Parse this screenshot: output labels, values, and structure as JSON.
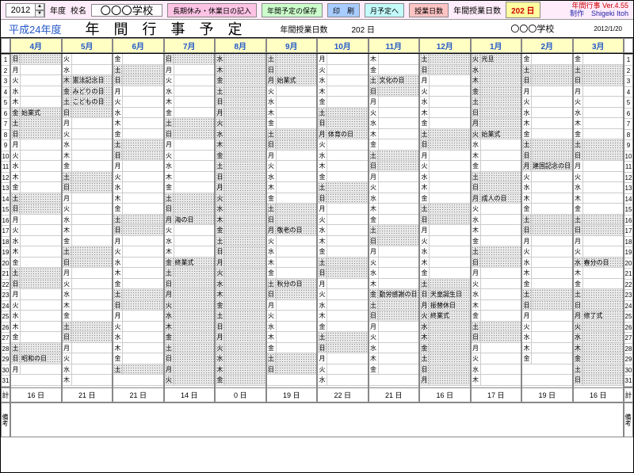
{
  "toolbar": {
    "year": "2012",
    "year_label": "年度",
    "school_label": "校名",
    "school_value": "〇〇〇学校",
    "btn_holiday": "長期休み・休業日の記入",
    "btn_save": "年間予定の保存",
    "btn_print": "印　刷",
    "btn_month": "月予定へ",
    "btn_days": "授業日数",
    "count_label": "年間授業日数",
    "count_value": "202 日",
    "version": "年間行事 Ver.4.55",
    "credit": "制作　Shigeki Itoh"
  },
  "title": {
    "era": "平成24年度",
    "main": "年間行事予定",
    "sub_count_label": "年間授業日数",
    "sub_count_value": "202 日",
    "school": "〇〇〇学校",
    "print_date": "2012/1/20"
  },
  "months": [
    "4月",
    "5月",
    "6月",
    "7月",
    "8月",
    "9月",
    "10月",
    "11月",
    "12月",
    "1月",
    "2月",
    "3月"
  ],
  "start_dow": [
    0,
    2,
    5,
    0,
    3,
    6,
    1,
    4,
    6,
    2,
    5,
    5
  ],
  "month_len": [
    30,
    31,
    30,
    31,
    31,
    30,
    31,
    30,
    31,
    31,
    29,
    31
  ],
  "dow_chars": [
    "日",
    "月",
    "火",
    "水",
    "木",
    "金",
    "土"
  ],
  "events": {
    "0": {
      "6": "始業式",
      "29": "昭和の日"
    },
    "1": {
      "3": "憲法記念日",
      "4": "みどりの日",
      "5": "こどもの日"
    },
    "3": {
      "16": "海の日",
      "20": "終業式"
    },
    "5": {
      "3": "始業式",
      "17": "敬老の日",
      "22": "秋分の日"
    },
    "6": {
      "8": "体育の日"
    },
    "7": {
      "3": "文化の日",
      "23": "勤労感謝の日"
    },
    "8": {
      "23": "天皇誕生日",
      "24": "振替休日",
      "25": "終業式"
    },
    "9": {
      "1": "元旦",
      "8": "始業式",
      "14": "成人の日"
    },
    "10": {
      "11": "建国記念の日"
    },
    "11": {
      "20": "春分の日",
      "25": "修了式"
    }
  },
  "vacation": {
    "3": {
      "start": 21,
      "end": 31
    },
    "4": {
      "start": 1,
      "end": 31
    },
    "5": {
      "start": 1,
      "end": 2
    },
    "8": {
      "start": 26,
      "end": 31
    },
    "9": {
      "start": 1,
      "end": 7
    },
    "11": {
      "start": 26,
      "end": 31
    }
  },
  "footer_counts": [
    "16 日",
    "21 日",
    "21 日",
    "14 日",
    "0 日",
    "19 日",
    "22 日",
    "21 日",
    "16 日",
    "17 日",
    "19 日",
    "16 日"
  ],
  "footer_label": "計",
  "biko_label": "備考"
}
